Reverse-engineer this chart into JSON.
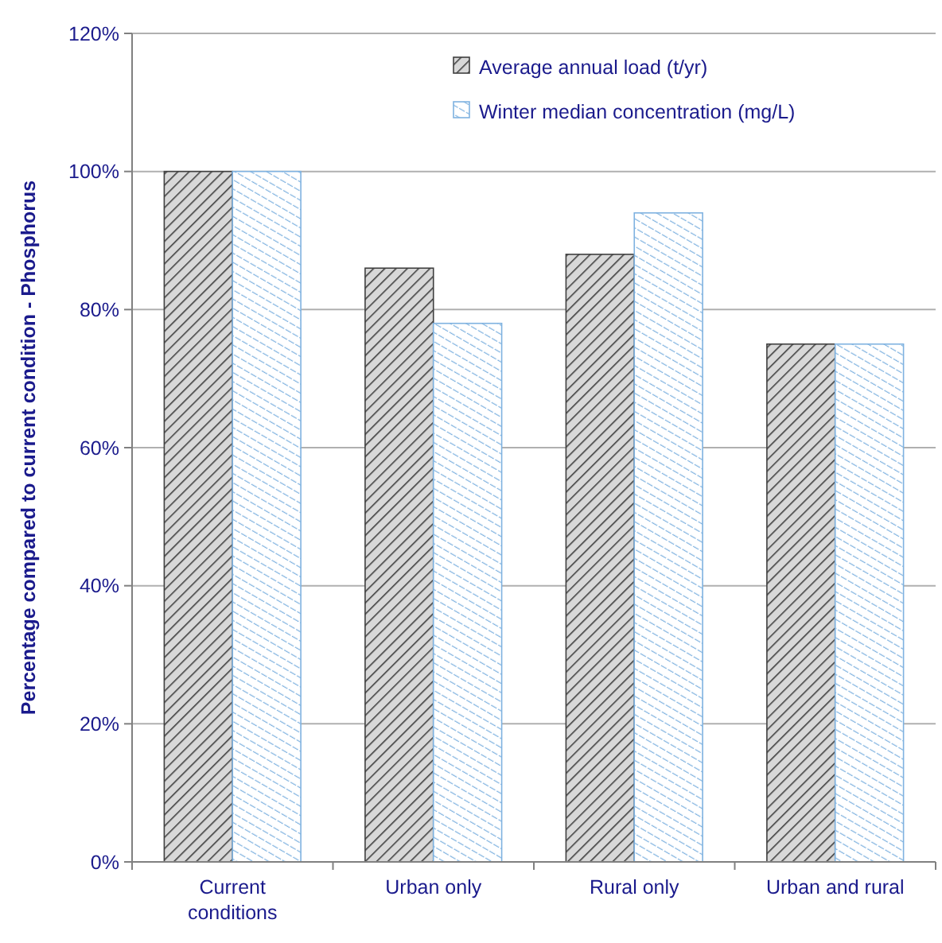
{
  "chart_data": {
    "type": "bar",
    "ylabel": "Percentage compared to current condition - Phosphorus",
    "categories": [
      "Current\nconditions",
      "Urban only",
      "Rural only",
      "Urban and rural"
    ],
    "series": [
      {
        "name": "Average annual load (t/yr)",
        "color": "#404040",
        "values": [
          100,
          86,
          88,
          75
        ]
      },
      {
        "name": "Winter median concentration (mg/L)",
        "color": "#7fb2e0",
        "values": [
          100,
          78,
          94,
          75
        ]
      }
    ],
    "ylim": [
      0,
      120
    ],
    "yticks": [
      {
        "value": 0,
        "label": "0%"
      },
      {
        "value": 20,
        "label": "20%"
      },
      {
        "value": 40,
        "label": "40%"
      },
      {
        "value": 60,
        "label": "60%"
      },
      {
        "value": 80,
        "label": "80%"
      },
      {
        "value": 100,
        "label": "100%"
      },
      {
        "value": 120,
        "label": "120%"
      }
    ],
    "grid": "y",
    "legend": "top right"
  }
}
